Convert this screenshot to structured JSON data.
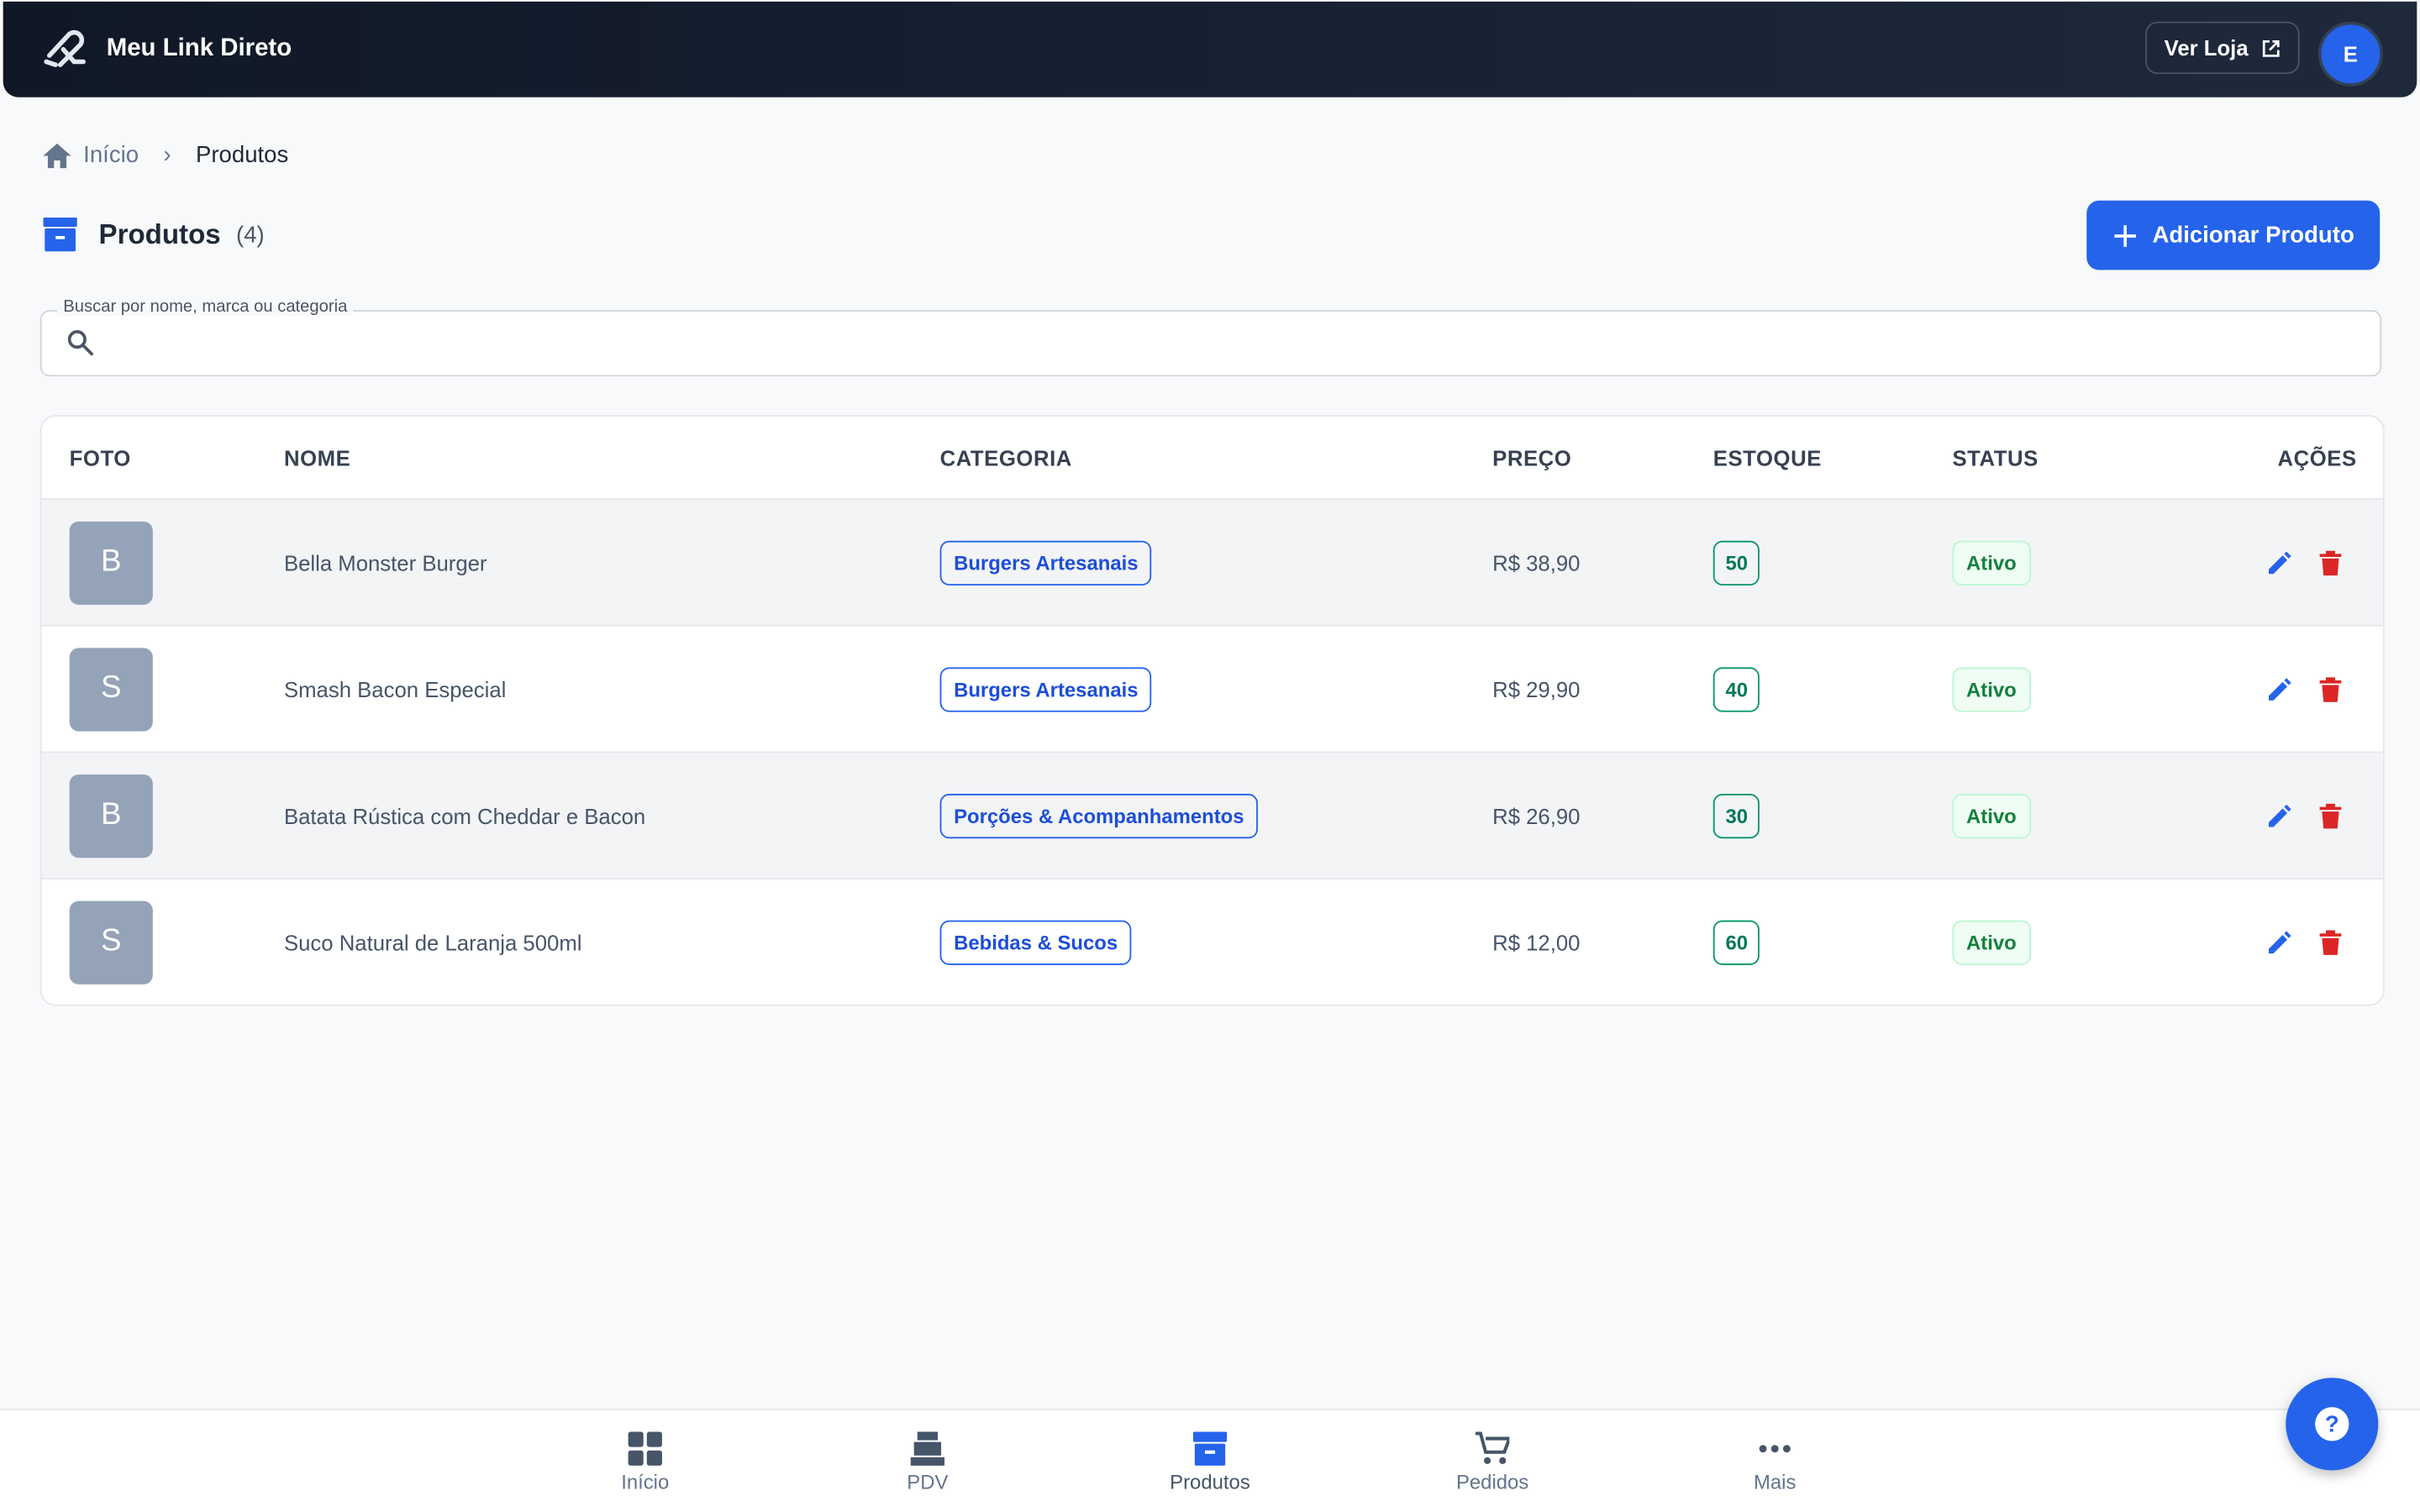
{
  "header": {
    "brand": "Meu Link Direto",
    "view_store": "Ver Loja",
    "avatar": "E"
  },
  "breadcrumb": {
    "home": "Início",
    "current": "Produtos"
  },
  "page": {
    "title": "Produtos",
    "count": "(4)",
    "add_button": "Adicionar Produto",
    "search_label": "Buscar por nome, marca ou categoria"
  },
  "table": {
    "headers": [
      "FOTO",
      "NOME",
      "CATEGORIA",
      "PREÇO",
      "ESTOQUE",
      "STATUS",
      "AÇÕES"
    ],
    "rows": [
      [
        "B",
        "Bella Monster Burger",
        "Burgers Artesanais",
        "R$ 38,90",
        "50",
        "Ativo"
      ],
      [
        "S",
        "Smash Bacon Especial",
        "Burgers Artesanais",
        "R$ 29,90",
        "40",
        "Ativo"
      ],
      [
        "B",
        "Batata Rústica com Cheddar e Bacon",
        "Porções & Acompanhamentos",
        "R$ 26,90",
        "30",
        "Ativo"
      ],
      [
        "S",
        "Suco Natural de Laranja 500ml",
        "Bebidas & Sucos",
        "R$ 12,00",
        "60",
        "Ativo"
      ]
    ]
  },
  "bottom_nav": [
    "Início",
    "PDV",
    "Produtos",
    "Pedidos",
    "Mais"
  ]
}
